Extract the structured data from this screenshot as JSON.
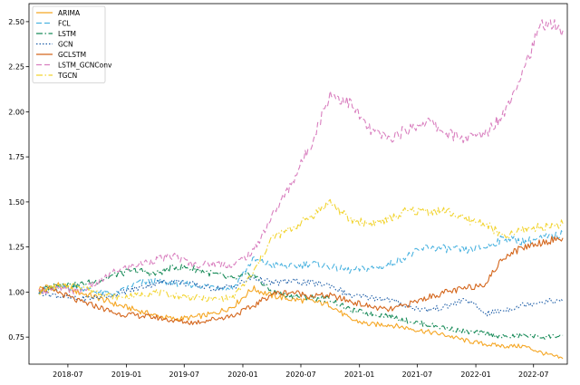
{
  "chart_data": {
    "type": "line",
    "title": "",
    "xlabel": "",
    "ylabel": "",
    "x_ticks": [
      "2018-07",
      "2019-01",
      "2019-07",
      "2020-01",
      "2020-07",
      "2021-01",
      "2021-07",
      "2022-01",
      "2022-07"
    ],
    "y_ticks": [
      "0.75",
      "1.00",
      "1.25",
      "1.50",
      "1.75",
      "2.00",
      "2.25",
      "2.50"
    ],
    "xlim": [
      "2018-03-01",
      "2022-10-15"
    ],
    "ylim": [
      0.6,
      2.6
    ],
    "grid": false,
    "legend_position": "top-left",
    "series": [
      {
        "name": "ARIMA",
        "color": "#f5a623",
        "dash": "solid",
        "x": [
          "2018-04-01",
          "2018-06-01",
          "2018-08-01",
          "2018-10-01",
          "2018-12-01",
          "2019-02-01",
          "2019-04-01",
          "2019-06-01",
          "2019-08-01",
          "2019-10-01",
          "2019-12-01",
          "2020-02-01",
          "2020-04-01",
          "2020-06-01",
          "2020-08-01",
          "2020-10-01",
          "2020-12-01",
          "2021-02-01",
          "2021-04-01",
          "2021-06-01",
          "2021-08-01",
          "2021-10-01",
          "2021-12-01",
          "2022-02-01",
          "2022-04-01",
          "2022-06-01",
          "2022-08-01",
          "2022-10-01"
        ],
        "values": [
          1.02,
          1.04,
          1.0,
          0.97,
          0.93,
          0.9,
          0.87,
          0.85,
          0.86,
          0.88,
          0.92,
          1.02,
          0.98,
          0.96,
          0.95,
          0.93,
          0.85,
          0.82,
          0.82,
          0.8,
          0.78,
          0.76,
          0.73,
          0.71,
          0.7,
          0.7,
          0.66,
          0.63
        ]
      },
      {
        "name": "FCL",
        "color": "#4bb3e0",
        "dash": "dashed",
        "x": [
          "2018-04-01",
          "2018-06-01",
          "2018-08-01",
          "2018-10-01",
          "2018-12-01",
          "2019-02-01",
          "2019-04-01",
          "2019-06-01",
          "2019-08-01",
          "2019-10-01",
          "2019-12-01",
          "2020-02-01",
          "2020-04-01",
          "2020-06-01",
          "2020-08-01",
          "2020-10-01",
          "2020-12-01",
          "2021-02-01",
          "2021-04-01",
          "2021-06-01",
          "2021-08-01",
          "2021-10-01",
          "2021-12-01",
          "2022-02-01",
          "2022-04-01",
          "2022-06-01",
          "2022-08-01",
          "2022-10-01"
        ],
        "values": [
          1.01,
          1.02,
          1.03,
          1.0,
          0.99,
          1.05,
          1.06,
          1.05,
          1.04,
          1.03,
          1.02,
          1.18,
          1.15,
          1.14,
          1.16,
          1.14,
          1.12,
          1.13,
          1.15,
          1.2,
          1.25,
          1.24,
          1.23,
          1.25,
          1.3,
          1.28,
          1.3,
          1.32
        ]
      },
      {
        "name": "LSTM",
        "color": "#1a8c5a",
        "dash": "dashdot",
        "x": [
          "2018-04-01",
          "2018-06-01",
          "2018-08-01",
          "2018-10-01",
          "2018-12-01",
          "2019-02-01",
          "2019-04-01",
          "2019-06-01",
          "2019-08-01",
          "2019-10-01",
          "2019-12-01",
          "2020-02-01",
          "2020-04-01",
          "2020-06-01",
          "2020-08-01",
          "2020-10-01",
          "2020-12-01",
          "2021-02-01",
          "2021-04-01",
          "2021-06-01",
          "2021-08-01",
          "2021-10-01",
          "2021-12-01",
          "2022-02-01",
          "2022-04-01",
          "2022-06-01",
          "2022-08-01",
          "2022-10-01"
        ],
        "values": [
          1.0,
          1.05,
          1.04,
          1.06,
          1.1,
          1.12,
          1.1,
          1.14,
          1.13,
          1.1,
          1.07,
          1.1,
          1.0,
          0.98,
          0.97,
          0.96,
          0.9,
          0.88,
          0.87,
          0.84,
          0.82,
          0.8,
          0.78,
          0.77,
          0.75,
          0.76,
          0.75,
          0.76
        ]
      },
      {
        "name": "GCN",
        "color": "#1f5fa8",
        "dash": "dotted",
        "x": [
          "2018-04-01",
          "2018-06-01",
          "2018-08-01",
          "2018-10-01",
          "2018-12-01",
          "2019-02-01",
          "2019-04-01",
          "2019-06-01",
          "2019-08-01",
          "2019-10-01",
          "2019-12-01",
          "2020-02-01",
          "2020-04-01",
          "2020-06-01",
          "2020-08-01",
          "2020-10-01",
          "2020-12-01",
          "2021-02-01",
          "2021-04-01",
          "2021-06-01",
          "2021-08-01",
          "2021-10-01",
          "2021-12-01",
          "2022-02-01",
          "2022-04-01",
          "2022-06-01",
          "2022-08-01",
          "2022-10-01"
        ],
        "values": [
          1.0,
          0.98,
          0.96,
          0.97,
          0.99,
          1.02,
          1.05,
          1.06,
          1.04,
          1.02,
          1.03,
          1.08,
          1.05,
          1.06,
          1.05,
          1.04,
          0.98,
          0.97,
          0.96,
          0.92,
          0.9,
          0.92,
          0.96,
          0.88,
          0.9,
          0.93,
          0.95,
          0.95
        ]
      },
      {
        "name": "GCLSTM",
        "color": "#d4661c",
        "dash": "solid",
        "x": [
          "2018-04-01",
          "2018-06-01",
          "2018-08-01",
          "2018-10-01",
          "2018-12-01",
          "2019-02-01",
          "2019-04-01",
          "2019-06-01",
          "2019-08-01",
          "2019-10-01",
          "2019-12-01",
          "2020-02-01",
          "2020-04-01",
          "2020-06-01",
          "2020-08-01",
          "2020-10-01",
          "2020-12-01",
          "2021-02-01",
          "2021-04-01",
          "2021-06-01",
          "2021-08-01",
          "2021-10-01",
          "2021-12-01",
          "2022-02-01",
          "2022-04-01",
          "2022-06-01",
          "2022-08-01",
          "2022-10-01"
        ],
        "values": [
          1.02,
          1.0,
          0.95,
          0.92,
          0.88,
          0.87,
          0.86,
          0.84,
          0.83,
          0.85,
          0.87,
          0.92,
          0.99,
          1.0,
          0.98,
          0.98,
          0.95,
          0.92,
          0.9,
          0.93,
          0.97,
          1.0,
          1.02,
          1.05,
          1.2,
          1.25,
          1.28,
          1.3
        ]
      },
      {
        "name": "LSTM_GCNConv",
        "color": "#d97fbf",
        "dash": "dashed",
        "x": [
          "2018-04-01",
          "2018-06-01",
          "2018-08-01",
          "2018-10-01",
          "2018-12-01",
          "2019-02-01",
          "2019-04-01",
          "2019-06-01",
          "2019-08-01",
          "2019-10-01",
          "2019-12-01",
          "2020-02-01",
          "2020-04-01",
          "2020-06-01",
          "2020-08-01",
          "2020-10-01",
          "2020-12-01",
          "2021-02-01",
          "2021-04-01",
          "2021-06-01",
          "2021-08-01",
          "2021-10-01",
          "2021-12-01",
          "2022-02-01",
          "2022-04-01",
          "2022-06-01",
          "2022-08-01",
          "2022-10-01"
        ],
        "values": [
          1.0,
          1.02,
          1.0,
          1.05,
          1.12,
          1.15,
          1.18,
          1.2,
          1.15,
          1.16,
          1.15,
          1.22,
          1.42,
          1.6,
          1.82,
          2.1,
          2.05,
          1.9,
          1.85,
          1.9,
          1.95,
          1.88,
          1.85,
          1.88,
          2.0,
          2.25,
          2.5,
          2.45
        ]
      },
      {
        "name": "TGCN",
        "color": "#f2d431",
        "dash": "dashdot",
        "x": [
          "2018-04-01",
          "2018-06-01",
          "2018-08-01",
          "2018-10-01",
          "2018-12-01",
          "2019-02-01",
          "2019-04-01",
          "2019-06-01",
          "2019-08-01",
          "2019-10-01",
          "2019-12-01",
          "2020-02-01",
          "2020-04-01",
          "2020-06-01",
          "2020-08-01",
          "2020-10-01",
          "2020-12-01",
          "2021-02-01",
          "2021-04-01",
          "2021-06-01",
          "2021-08-01",
          "2021-10-01",
          "2021-12-01",
          "2022-02-01",
          "2022-04-01",
          "2022-06-01",
          "2022-08-01",
          "2022-10-01"
        ],
        "values": [
          1.0,
          1.03,
          1.04,
          1.0,
          0.97,
          0.98,
          1.0,
          0.98,
          0.97,
          0.96,
          0.97,
          1.1,
          1.3,
          1.35,
          1.42,
          1.5,
          1.4,
          1.38,
          1.4,
          1.45,
          1.45,
          1.45,
          1.4,
          1.38,
          1.3,
          1.35,
          1.36,
          1.38
        ]
      }
    ]
  }
}
